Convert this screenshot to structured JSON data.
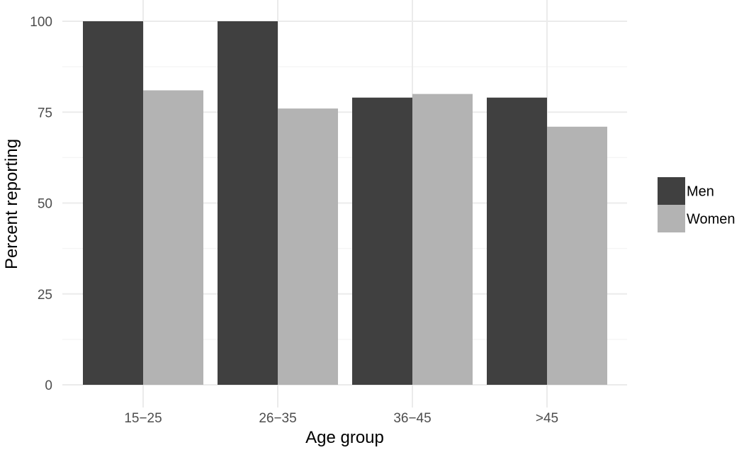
{
  "chart_data": {
    "type": "bar",
    "title": "",
    "xlabel": "Age group",
    "ylabel": "Percent reporting",
    "categories": [
      "15−25",
      "26−35",
      "36−45",
      ">45"
    ],
    "series": [
      {
        "name": "Men",
        "color": "#404040",
        "values": [
          100,
          100,
          79,
          79
        ]
      },
      {
        "name": "Women",
        "color": "#b3b3b3",
        "values": [
          81,
          76,
          80,
          71
        ]
      }
    ],
    "ylim": [
      0,
      100
    ],
    "yticks": [
      0,
      25,
      50,
      75,
      100
    ],
    "ytick_labels": [
      "0",
      "25",
      "50",
      "75",
      "100"
    ],
    "grid": true,
    "legend_position": "right",
    "colors": {
      "grid_major": "#ebebeb",
      "grid_minor": "#f4f4f4",
      "tick_text": "#4d4d4d"
    }
  }
}
